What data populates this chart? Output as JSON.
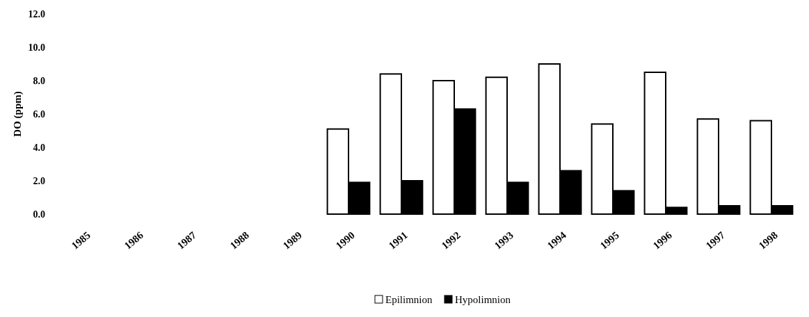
{
  "chart_data": {
    "type": "bar",
    "ylabel": "DO (ppm)",
    "categories": [
      "1985",
      "1986",
      "1987",
      "1988",
      "1989",
      "1990",
      "1991",
      "1992",
      "1993",
      "1994",
      "1995",
      "1996",
      "1997",
      "1998"
    ],
    "series": [
      {
        "name": "Epilimnion",
        "color": "#ffffff",
        "values": [
          null,
          null,
          null,
          null,
          null,
          5.1,
          8.4,
          8.0,
          8.2,
          9.0,
          5.4,
          8.5,
          5.7,
          5.6
        ]
      },
      {
        "name": "Hypolimnion",
        "color": "#000000",
        "values": [
          null,
          null,
          null,
          null,
          null,
          1.9,
          2.0,
          6.3,
          1.9,
          2.6,
          1.4,
          0.4,
          0.5,
          0.5
        ]
      }
    ],
    "ylim": [
      0,
      12
    ],
    "yticks": [
      {
        "value": 0,
        "label": "0.0"
      },
      {
        "value": 2,
        "label": "2.0"
      },
      {
        "value": 4,
        "label": "4.0"
      },
      {
        "value": 6,
        "label": "6.0"
      },
      {
        "value": 8,
        "label": "8.0"
      },
      {
        "value": 10,
        "label": "10.0"
      },
      {
        "value": 12,
        "label": "12.0"
      }
    ],
    "legend": "bottom",
    "grid": false
  }
}
